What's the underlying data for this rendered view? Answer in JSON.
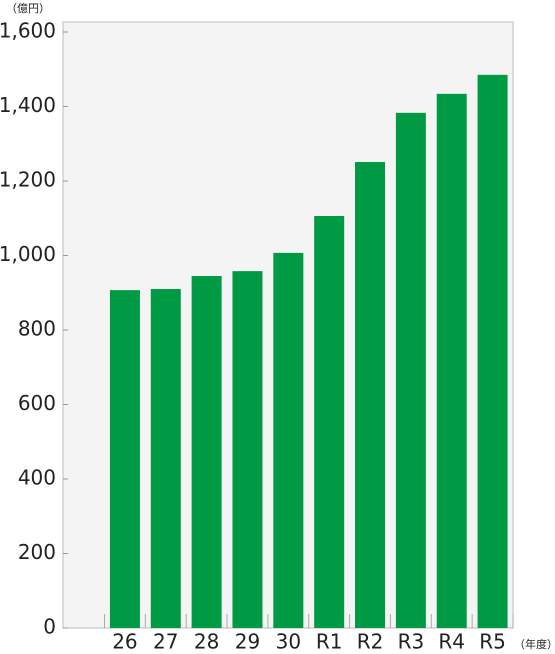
{
  "chart_data": {
    "type": "bar",
    "y_unit": "（億円）",
    "x_unit": "（年度）",
    "categories": [
      "26",
      "27",
      "28",
      "29",
      "30",
      "R1",
      "R2",
      "R3",
      "R4",
      "R5"
    ],
    "values": [
      907,
      910,
      945,
      958,
      1007,
      1106,
      1251,
      1383,
      1434,
      1485
    ],
    "color": "#009a44",
    "ylim": [
      0,
      1600
    ],
    "yticks": [
      0,
      200,
      400,
      600,
      800,
      {
        "value": 1000,
        "label": "1,000"
      },
      {
        "value": 1200,
        "label": "1,200"
      },
      {
        "value": 1400,
        "label": "1,400"
      },
      {
        "value": 1600,
        "label": "1,600"
      }
    ],
    "grid": false
  }
}
